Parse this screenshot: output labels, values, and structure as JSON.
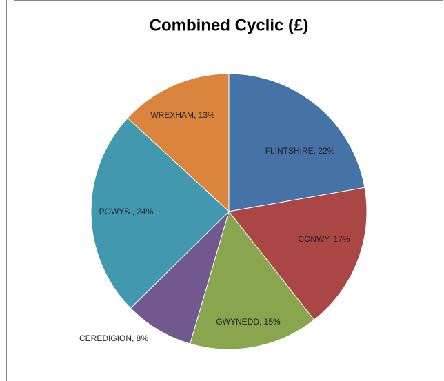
{
  "chart_data": {
    "type": "pie",
    "title": "Combined Cyclic (£)",
    "values": [
      22,
      17,
      15,
      8,
      24,
      13
    ],
    "value_labels": [
      "FLINTSHIRE, 22%",
      "CONWY, 17%",
      "GWYNEDD, 15%",
      "CEREDIGION, 8%",
      "POWYS , 24%",
      "WREXHAM, 13%"
    ],
    "colors": [
      "#4572a7",
      "#aa4643",
      "#89a54e",
      "#71588f",
      "#4198af",
      "#db843d"
    ]
  }
}
